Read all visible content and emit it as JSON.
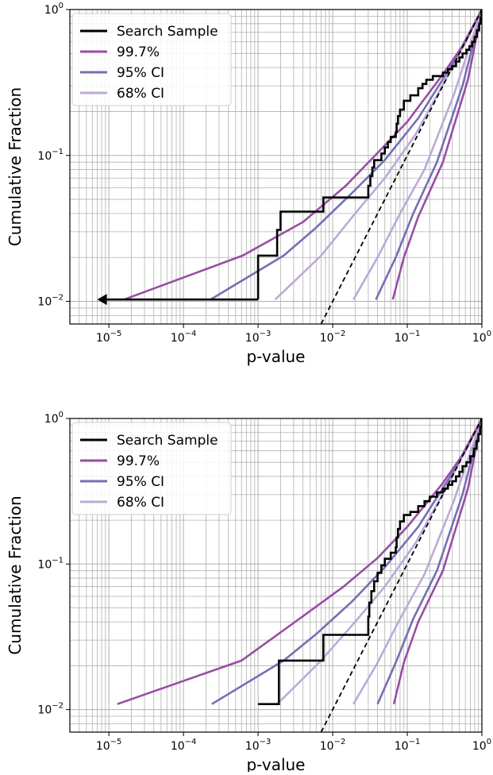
{
  "chart_data": [
    {
      "type": "line",
      "xlabel": "p-value",
      "ylabel": "Cumulative Fraction",
      "xscale": "log",
      "yscale": "log",
      "xlim": [
        3e-06,
        1
      ],
      "ylim": [
        0.007,
        1
      ],
      "grid": true,
      "legend_position": "top-left",
      "x_tick_labels": [
        {
          "base": "10",
          "exp": "−5",
          "value": 1e-05
        },
        {
          "base": "10",
          "exp": "−4",
          "value": 0.0001
        },
        {
          "base": "10",
          "exp": "−3",
          "value": 0.001
        },
        {
          "base": "10",
          "exp": "−2",
          "value": 0.01
        },
        {
          "base": "10",
          "exp": "−1",
          "value": 0.1
        },
        {
          "base": "10",
          "exp": "0",
          "value": 1
        }
      ],
      "y_tick_labels": [
        {
          "base": "10",
          "exp": "−2",
          "value": 0.01
        },
        {
          "base": "10",
          "exp": "−1",
          "value": 0.1
        },
        {
          "base": "10",
          "exp": "0",
          "value": 1
        }
      ],
      "legend": [
        {
          "label": "Search Sample",
          "color": "#000000"
        },
        {
          "label": "99.7%",
          "color": "#984ea3"
        },
        {
          "label": "95% CI",
          "color": "#7570b3"
        },
        {
          "label": "68% CI",
          "color": "#bcaad6"
        }
      ],
      "series": [
        {
          "name": "Search Sample",
          "kind": "step",
          "color": "#000000",
          "steps": [
            [
              0.001,
              0.0103
            ],
            [
              0.001,
              0.0206
            ],
            [
              0.0018,
              0.0206
            ],
            [
              0.0018,
              0.0309
            ],
            [
              0.002,
              0.0309
            ],
            [
              0.002,
              0.0412
            ],
            [
              0.0075,
              0.0412
            ],
            [
              0.0075,
              0.0515
            ],
            [
              0.03,
              0.0515
            ],
            [
              0.03,
              0.0619
            ],
            [
              0.032,
              0.0619
            ],
            [
              0.032,
              0.0722
            ],
            [
              0.034,
              0.0722
            ],
            [
              0.034,
              0.0825
            ],
            [
              0.036,
              0.0825
            ],
            [
              0.036,
              0.0928
            ],
            [
              0.045,
              0.0928
            ],
            [
              0.045,
              0.1031
            ],
            [
              0.05,
              0.1031
            ],
            [
              0.05,
              0.1134
            ],
            [
              0.055,
              0.1134
            ],
            [
              0.055,
              0.1237
            ],
            [
              0.06,
              0.1237
            ],
            [
              0.06,
              0.134
            ],
            [
              0.07,
              0.134
            ],
            [
              0.07,
              0.1443
            ],
            [
              0.072,
              0.1443
            ],
            [
              0.072,
              0.165
            ],
            [
              0.075,
              0.165
            ],
            [
              0.075,
              0.186
            ],
            [
              0.08,
              0.186
            ],
            [
              0.08,
              0.206
            ],
            [
              0.09,
              0.206
            ],
            [
              0.09,
              0.237
            ],
            [
              0.11,
              0.237
            ],
            [
              0.11,
              0.258
            ],
            [
              0.14,
              0.258
            ],
            [
              0.14,
              0.289
            ],
            [
              0.16,
              0.289
            ],
            [
              0.16,
              0.309
            ],
            [
              0.18,
              0.309
            ],
            [
              0.18,
              0.33
            ],
            [
              0.22,
              0.33
            ],
            [
              0.22,
              0.35
            ],
            [
              0.3,
              0.35
            ],
            [
              0.3,
              0.37
            ],
            [
              0.35,
              0.37
            ],
            [
              0.35,
              0.39
            ],
            [
              0.4,
              0.39
            ],
            [
              0.4,
              0.41
            ],
            [
              0.45,
              0.41
            ],
            [
              0.45,
              0.44
            ],
            [
              0.5,
              0.44
            ],
            [
              0.5,
              0.47
            ],
            [
              0.55,
              0.47
            ],
            [
              0.55,
              0.5
            ],
            [
              0.62,
              0.5
            ],
            [
              0.62,
              0.53
            ],
            [
              0.68,
              0.53
            ],
            [
              0.68,
              0.56
            ],
            [
              0.74,
              0.56
            ],
            [
              0.74,
              0.6
            ],
            [
              0.8,
              0.6
            ],
            [
              0.8,
              0.65
            ],
            [
              0.86,
              0.65
            ],
            [
              0.86,
              0.72
            ],
            [
              0.92,
              0.72
            ],
            [
              0.92,
              0.8
            ],
            [
              0.96,
              0.8
            ],
            [
              0.96,
              0.88
            ],
            [
              0.99,
              0.88
            ],
            [
              0.99,
              1.0
            ]
          ],
          "horizontal_to_arrow": {
            "from_x": 0.001,
            "to_x": 7e-06,
            "y": 0.0103
          }
        },
        {
          "name": "Expected",
          "kind": "dashed",
          "color": "#000000",
          "x": [
            0.007,
            1
          ],
          "y": [
            0.007,
            1
          ]
        },
        {
          "name": "99.7% upper",
          "color": "#984ea3",
          "x": [
            1.6e-05,
            0.00062,
            0.004,
            0.015,
            0.04,
            0.1,
            0.3,
            0.6,
            1
          ],
          "y": [
            0.0103,
            0.0206,
            0.035,
            0.062,
            0.104,
            0.17,
            0.36,
            0.6,
            1
          ]
        },
        {
          "name": "95% upper",
          "color": "#7570b3",
          "x": [
            0.00023,
            0.0022,
            0.006,
            0.018,
            0.05,
            0.14,
            0.4,
            1
          ],
          "y": [
            0.0103,
            0.0206,
            0.032,
            0.055,
            0.093,
            0.18,
            0.42,
            1
          ]
        },
        {
          "name": "68% upper",
          "color": "#bcaad6",
          "x": [
            0.0017,
            0.007,
            0.02,
            0.05,
            0.13,
            0.4,
            1
          ],
          "y": [
            0.0103,
            0.0206,
            0.04,
            0.07,
            0.14,
            0.4,
            1
          ]
        },
        {
          "name": "68% lower",
          "color": "#bcaad6",
          "x": [
            0.019,
            0.04,
            0.08,
            0.17,
            0.42,
            1
          ],
          "y": [
            0.0103,
            0.02,
            0.04,
            0.08,
            0.26,
            1
          ]
        },
        {
          "name": "95% lower",
          "color": "#7570b3",
          "x": [
            0.038,
            0.07,
            0.12,
            0.25,
            0.55,
            1
          ],
          "y": [
            0.0103,
            0.02,
            0.04,
            0.09,
            0.3,
            1
          ]
        },
        {
          "name": "99.7% lower",
          "color": "#984ea3",
          "x": [
            0.064,
            0.09,
            0.14,
            0.3,
            0.65,
            1
          ],
          "y": [
            0.0103,
            0.02,
            0.038,
            0.09,
            0.33,
            1
          ]
        }
      ]
    },
    {
      "type": "line",
      "xlabel": "p-value",
      "ylabel": "Cumulative Fraction",
      "xscale": "log",
      "yscale": "log",
      "xlim": [
        3e-06,
        1
      ],
      "ylim": [
        0.007,
        1
      ],
      "grid": true,
      "legend_position": "top-left",
      "x_tick_labels": [
        {
          "base": "10",
          "exp": "−5",
          "value": 1e-05
        },
        {
          "base": "10",
          "exp": "−4",
          "value": 0.0001
        },
        {
          "base": "10",
          "exp": "−3",
          "value": 0.001
        },
        {
          "base": "10",
          "exp": "−2",
          "value": 0.01
        },
        {
          "base": "10",
          "exp": "−1",
          "value": 0.1
        },
        {
          "base": "10",
          "exp": "0",
          "value": 1
        }
      ],
      "y_tick_labels": [
        {
          "base": "10",
          "exp": "−2",
          "value": 0.01
        },
        {
          "base": "10",
          "exp": "−1",
          "value": 0.1
        },
        {
          "base": "10",
          "exp": "0",
          "value": 1
        }
      ],
      "legend": [
        {
          "label": "Search Sample",
          "color": "#000000"
        },
        {
          "label": "99.7%",
          "color": "#984ea3"
        },
        {
          "label": "95% CI",
          "color": "#7570b3"
        },
        {
          "label": "68% CI",
          "color": "#bcaad6"
        }
      ],
      "series": [
        {
          "name": "Search Sample",
          "kind": "step",
          "color": "#000000",
          "steps": [
            [
              0.001,
              0.0109
            ],
            [
              0.0019,
              0.0109
            ],
            [
              0.0019,
              0.0217
            ],
            [
              0.0075,
              0.0217
            ],
            [
              0.0075,
              0.0326
            ],
            [
              0.03,
              0.0326
            ],
            [
              0.03,
              0.0435
            ],
            [
              0.031,
              0.0435
            ],
            [
              0.031,
              0.0543
            ],
            [
              0.033,
              0.0543
            ],
            [
              0.033,
              0.0652
            ],
            [
              0.036,
              0.0652
            ],
            [
              0.036,
              0.0761
            ],
            [
              0.04,
              0.0761
            ],
            [
              0.04,
              0.087
            ],
            [
              0.045,
              0.087
            ],
            [
              0.045,
              0.0978
            ],
            [
              0.05,
              0.0978
            ],
            [
              0.05,
              0.1087
            ],
            [
              0.06,
              0.1087
            ],
            [
              0.06,
              0.1196
            ],
            [
              0.07,
              0.1196
            ],
            [
              0.07,
              0.1304
            ],
            [
              0.072,
              0.1304
            ],
            [
              0.072,
              0.152
            ],
            [
              0.075,
              0.152
            ],
            [
              0.075,
              0.174
            ],
            [
              0.08,
              0.174
            ],
            [
              0.08,
              0.196
            ],
            [
              0.09,
              0.196
            ],
            [
              0.09,
              0.217
            ],
            [
              0.11,
              0.217
            ],
            [
              0.11,
              0.228
            ],
            [
              0.14,
              0.228
            ],
            [
              0.14,
              0.25
            ],
            [
              0.17,
              0.25
            ],
            [
              0.17,
              0.27
            ],
            [
              0.2,
              0.27
            ],
            [
              0.2,
              0.29
            ],
            [
              0.25,
              0.29
            ],
            [
              0.25,
              0.31
            ],
            [
              0.3,
              0.31
            ],
            [
              0.3,
              0.33
            ],
            [
              0.35,
              0.33
            ],
            [
              0.35,
              0.35
            ],
            [
              0.4,
              0.35
            ],
            [
              0.4,
              0.37
            ],
            [
              0.45,
              0.37
            ],
            [
              0.45,
              0.4
            ],
            [
              0.5,
              0.4
            ],
            [
              0.5,
              0.43
            ],
            [
              0.55,
              0.43
            ],
            [
              0.55,
              0.47
            ],
            [
              0.62,
              0.47
            ],
            [
              0.62,
              0.5
            ],
            [
              0.7,
              0.5
            ],
            [
              0.7,
              0.55
            ],
            [
              0.78,
              0.55
            ],
            [
              0.78,
              0.62
            ],
            [
              0.85,
              0.62
            ],
            [
              0.85,
              0.7
            ],
            [
              0.9,
              0.7
            ],
            [
              0.9,
              0.78
            ],
            [
              0.95,
              0.78
            ],
            [
              0.95,
              0.88
            ],
            [
              0.99,
              0.88
            ],
            [
              0.99,
              1.0
            ]
          ]
        },
        {
          "name": "Expected",
          "kind": "dashed",
          "color": "#000000",
          "x": [
            0.007,
            1
          ],
          "y": [
            0.007,
            1
          ]
        },
        {
          "name": "99.7% upper",
          "color": "#984ea3",
          "x": [
            1.3e-05,
            0.0006,
            0.0038,
            0.014,
            0.04,
            0.1,
            0.3,
            0.6,
            1
          ],
          "y": [
            0.0109,
            0.0217,
            0.043,
            0.07,
            0.11,
            0.18,
            0.36,
            0.6,
            1
          ]
        },
        {
          "name": "95% upper",
          "color": "#7570b3",
          "x": [
            0.00024,
            0.0022,
            0.006,
            0.018,
            0.05,
            0.14,
            0.4,
            1
          ],
          "y": [
            0.0109,
            0.0217,
            0.033,
            0.055,
            0.095,
            0.18,
            0.42,
            1
          ]
        },
        {
          "name": "68% upper",
          "color": "#bcaad6",
          "x": [
            0.0018,
            0.007,
            0.02,
            0.05,
            0.13,
            0.4,
            1
          ],
          "y": [
            0.0109,
            0.0217,
            0.04,
            0.07,
            0.14,
            0.4,
            1
          ]
        },
        {
          "name": "68% lower",
          "color": "#bcaad6",
          "x": [
            0.019,
            0.04,
            0.08,
            0.17,
            0.42,
            1
          ],
          "y": [
            0.0109,
            0.021,
            0.042,
            0.085,
            0.27,
            1
          ]
        },
        {
          "name": "95% lower",
          "color": "#7570b3",
          "x": [
            0.04,
            0.07,
            0.12,
            0.25,
            0.55,
            1
          ],
          "y": [
            0.0109,
            0.021,
            0.042,
            0.09,
            0.3,
            1
          ]
        },
        {
          "name": "99.7% lower",
          "color": "#984ea3",
          "x": [
            0.066,
            0.09,
            0.14,
            0.3,
            0.65,
            1
          ],
          "y": [
            0.0109,
            0.021,
            0.04,
            0.09,
            0.33,
            1
          ]
        }
      ]
    }
  ]
}
